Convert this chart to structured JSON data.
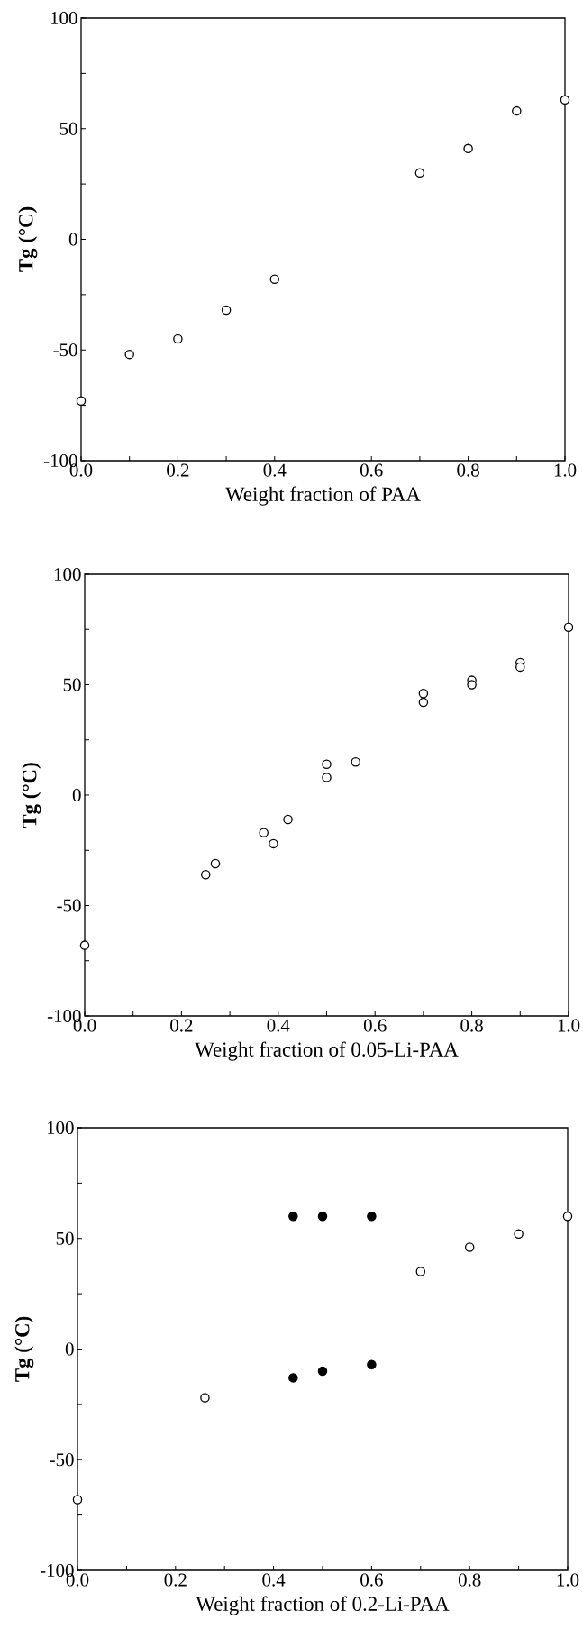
{
  "chart_data": [
    {
      "type": "scatter",
      "xlabel": "Weight fraction of PAA",
      "ylabel": "Tg (°C)",
      "marker": "circle",
      "xlim": [
        0,
        1
      ],
      "ylim": [
        -100,
        100
      ],
      "xticks": [
        {
          "value": 0,
          "label": "0.0"
        },
        {
          "value": 0.1,
          "label": null
        },
        0.2,
        {
          "value": 0.3,
          "label": null
        },
        0.4,
        {
          "value": 0.5,
          "label": null
        },
        0.6,
        {
          "value": 0.7,
          "label": null
        },
        0.8,
        {
          "value": 0.9,
          "label": null
        },
        {
          "value": 1,
          "label": "1.0"
        }
      ],
      "yticks": [
        -100,
        {
          "value": -75,
          "label": null
        },
        -50,
        {
          "value": -25,
          "label": null
        },
        0,
        {
          "value": 25,
          "label": null
        },
        50,
        {
          "value": 75,
          "label": null
        },
        100
      ],
      "series": [
        {
          "color": "#ffffff",
          "x": [
            0,
            0.1,
            0.2,
            0.3,
            0.4,
            0.7,
            0.8,
            0.9,
            1.0
          ],
          "values": [
            -73,
            -52,
            -45,
            -32,
            -18,
            30,
            41,
            58,
            63
          ]
        }
      ]
    },
    {
      "type": "scatter",
      "xlabel": "Weight fraction of 0.05-Li-PAA",
      "ylabel": "Tg (°C)",
      "marker": "circle",
      "xlim": [
        0,
        1
      ],
      "ylim": [
        -100,
        100
      ],
      "xticks": [
        {
          "value": 0,
          "label": "0.0"
        },
        {
          "value": 0.1,
          "label": null
        },
        0.2,
        {
          "value": 0.3,
          "label": null
        },
        0.4,
        {
          "value": 0.5,
          "label": null
        },
        0.6,
        {
          "value": 0.7,
          "label": null
        },
        0.8,
        {
          "value": 0.9,
          "label": null
        },
        {
          "value": 1,
          "label": "1.0"
        }
      ],
      "yticks": [
        -100,
        {
          "value": -75,
          "label": null
        },
        -50,
        {
          "value": -25,
          "label": null
        },
        0,
        {
          "value": 25,
          "label": null
        },
        50,
        {
          "value": 75,
          "label": null
        },
        100
      ],
      "series": [
        {
          "color": "#ffffff",
          "x": [
            0,
            0.25,
            0.27,
            0.37,
            0.39,
            0.42,
            0.5,
            0.5,
            0.56,
            0.7,
            0.7,
            0.8,
            0.8,
            0.9,
            0.9,
            1.0
          ],
          "values": [
            -68,
            -36,
            -31,
            -17,
            -22,
            -11,
            14,
            8,
            15,
            46,
            42,
            52,
            50,
            60,
            58,
            76
          ]
        }
      ]
    },
    {
      "type": "scatter",
      "xlabel": "Weight fraction of 0.2-Li-PAA",
      "ylabel": "Tg (°C)",
      "marker": "circle",
      "xlim": [
        0,
        1
      ],
      "ylim": [
        -100,
        100
      ],
      "xticks": [
        {
          "value": 0,
          "label": "0.0"
        },
        {
          "value": 0.1,
          "label": null
        },
        0.2,
        {
          "value": 0.3,
          "label": null
        },
        0.4,
        {
          "value": 0.5,
          "label": null
        },
        0.6,
        {
          "value": 0.7,
          "label": null
        },
        0.8,
        {
          "value": 0.9,
          "label": null
        },
        {
          "value": 1,
          "label": "1.0"
        }
      ],
      "yticks": [
        -100,
        {
          "value": -75,
          "label": null
        },
        -50,
        {
          "value": -25,
          "label": null
        },
        0,
        {
          "value": 25,
          "label": null
        },
        50,
        {
          "value": 75,
          "label": null
        },
        100
      ],
      "series": [
        {
          "color": "#ffffff",
          "x": [
            0,
            0.26,
            0.7,
            0.8,
            0.9,
            1.0
          ],
          "values": [
            -68,
            -22,
            35,
            46,
            52,
            60
          ]
        },
        {
          "color": "#000000",
          "x": [
            0.44,
            0.5,
            0.6,
            0.44,
            0.5,
            0.6
          ],
          "values": [
            60,
            60,
            60,
            -13,
            -10,
            -7
          ]
        }
      ]
    }
  ]
}
